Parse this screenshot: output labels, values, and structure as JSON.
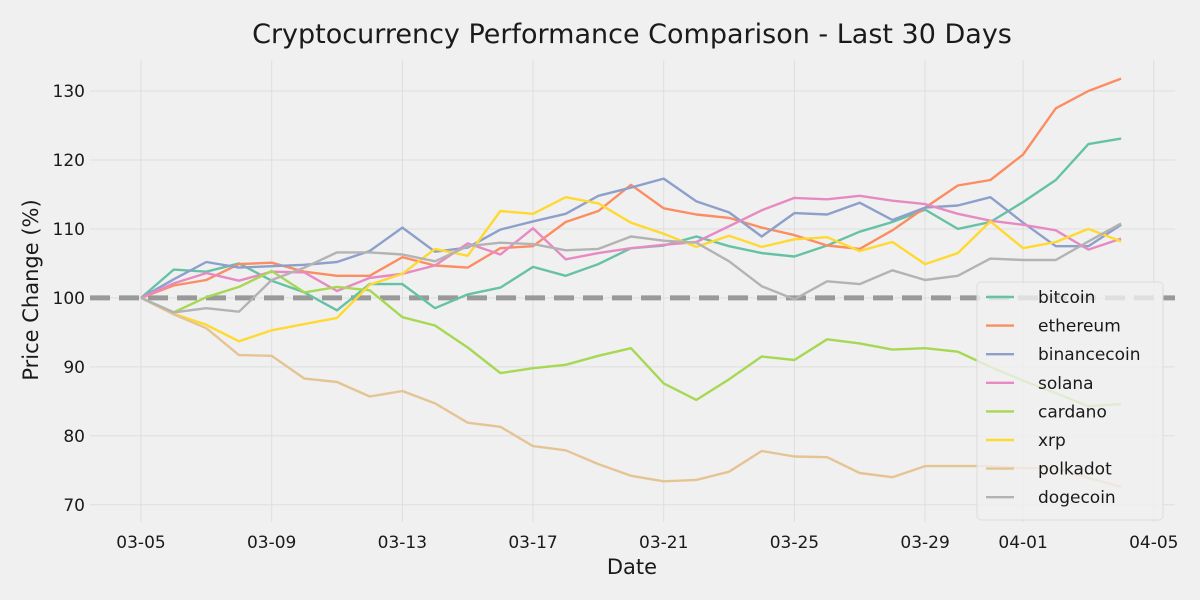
{
  "chart_data": {
    "type": "line",
    "title": "Cryptocurrency Performance Comparison - Last 30 Days",
    "xlabel": "Date",
    "ylabel": "Price Change (%)",
    "x": [
      "03-05",
      "03-06",
      "03-07",
      "03-08",
      "03-09",
      "03-10",
      "03-11",
      "03-12",
      "03-13",
      "03-14",
      "03-15",
      "03-16",
      "03-17",
      "03-18",
      "03-19",
      "03-20",
      "03-21",
      "03-22",
      "03-23",
      "03-24",
      "03-25",
      "03-26",
      "03-27",
      "03-28",
      "03-29",
      "03-30",
      "03-31",
      "04-01",
      "04-02",
      "04-03",
      "04-04"
    ],
    "xticks": [
      "03-05",
      "03-09",
      "03-13",
      "03-17",
      "03-21",
      "03-25",
      "03-29",
      "04-01",
      "04-05"
    ],
    "yticks": [
      70,
      80,
      90,
      100,
      110,
      120,
      130
    ],
    "ylim": [
      67.5,
      134.5
    ],
    "xlim": [
      "03-04 (approx.)",
      "04-05 (approx.)"
    ],
    "grid": true,
    "legend_position": "lower-right",
    "reference_line": {
      "y": 100,
      "style": "dashed",
      "color": "#999999"
    },
    "series": [
      {
        "name": "bitcoin",
        "color": "#66c2a5",
        "values": [
          100,
          104.1,
          103.8,
          105,
          102.5,
          100.8,
          98.2,
          102,
          102,
          98.5,
          100.5,
          101.5,
          104.5,
          103.2,
          104.9,
          107.2,
          107.6,
          108.9,
          107.5,
          106.5,
          106,
          107.6,
          109.6,
          111,
          112.8,
          110,
          111,
          113.9,
          117.1,
          122.3,
          123.1
        ]
      },
      {
        "name": "ethereum",
        "color": "#fc8d62",
        "values": [
          100,
          101.8,
          102.6,
          104.9,
          105.1,
          103.8,
          103.2,
          103.2,
          105.9,
          104.7,
          104.4,
          107.2,
          107.5,
          111,
          112.6,
          116.4,
          113,
          112.1,
          111.6,
          110.2,
          109.1,
          107.6,
          107.1,
          109.8,
          113.1,
          116.3,
          117.1,
          120.8,
          127.5,
          130,
          131.8
        ]
      },
      {
        "name": "binancecoin",
        "color": "#8da0cb",
        "values": [
          100,
          102.7,
          105.2,
          104.4,
          104.6,
          104.8,
          105.2,
          106.8,
          110.2,
          106.7,
          107.3,
          109.9,
          111.1,
          112.2,
          114.8,
          116,
          117.3,
          114,
          112.4,
          108.9,
          112.3,
          112.1,
          113.8,
          111.3,
          113.1,
          113.4,
          114.6,
          110.9,
          107.5,
          107.5,
          110.6
        ]
      },
      {
        "name": "solana",
        "color": "#e78ac3",
        "values": [
          100,
          102.1,
          103.6,
          102.5,
          103.8,
          103.7,
          101,
          102.9,
          103.5,
          104.7,
          107.9,
          106.3,
          110.1,
          105.6,
          106.5,
          107.2,
          107.7,
          108.1,
          110.4,
          112.7,
          114.5,
          114.3,
          114.8,
          114.1,
          113.6,
          112.2,
          111.2,
          110.6,
          109.8,
          107,
          108.6
        ]
      },
      {
        "name": "cardano",
        "color": "#a6d854",
        "values": [
          100,
          97.9,
          100.1,
          101.6,
          103.9,
          100.8,
          101.6,
          101.1,
          97.2,
          96,
          92.8,
          89.1,
          89.8,
          90.3,
          91.6,
          92.7,
          87.6,
          85.2,
          88.2,
          91.5,
          91,
          94,
          93.4,
          92.5,
          92.7,
          92.2,
          90,
          88,
          86.2,
          84.3,
          84.6
        ]
      },
      {
        "name": "xrp",
        "color": "#ffd92f",
        "values": [
          100,
          97.7,
          96.1,
          93.7,
          95.3,
          96.2,
          97.1,
          101.9,
          103.5,
          107.1,
          106.1,
          112.6,
          112.2,
          114.6,
          113.7,
          110.9,
          109.3,
          107.4,
          109,
          107.4,
          108.5,
          108.8,
          106.8,
          108.1,
          104.9,
          106.5,
          111.1,
          107.2,
          108.1,
          110,
          108.2
        ]
      },
      {
        "name": "polkadot",
        "color": "#e5c494",
        "values": [
          100,
          97.6,
          95.6,
          91.7,
          91.6,
          88.3,
          87.8,
          85.7,
          86.5,
          84.7,
          81.9,
          81.3,
          78.5,
          77.9,
          75.9,
          74.2,
          73.4,
          73.6,
          74.8,
          77.8,
          77,
          76.9,
          74.6,
          74,
          75.6,
          75.6,
          75.6,
          75.3,
          75.3,
          73.9,
          72.6
        ]
      },
      {
        "name": "dogecoin",
        "color": "#b3b3b3",
        "values": [
          100,
          97.9,
          98.5,
          98,
          102.6,
          104.4,
          106.6,
          106.6,
          106.3,
          105.3,
          107.5,
          108,
          107.8,
          106.9,
          107.1,
          108.9,
          108.3,
          108,
          105.3,
          101.7,
          99.8,
          102.4,
          102,
          104,
          102.6,
          103.2,
          105.7,
          105.5,
          105.5,
          108.2,
          110.8
        ]
      }
    ]
  }
}
